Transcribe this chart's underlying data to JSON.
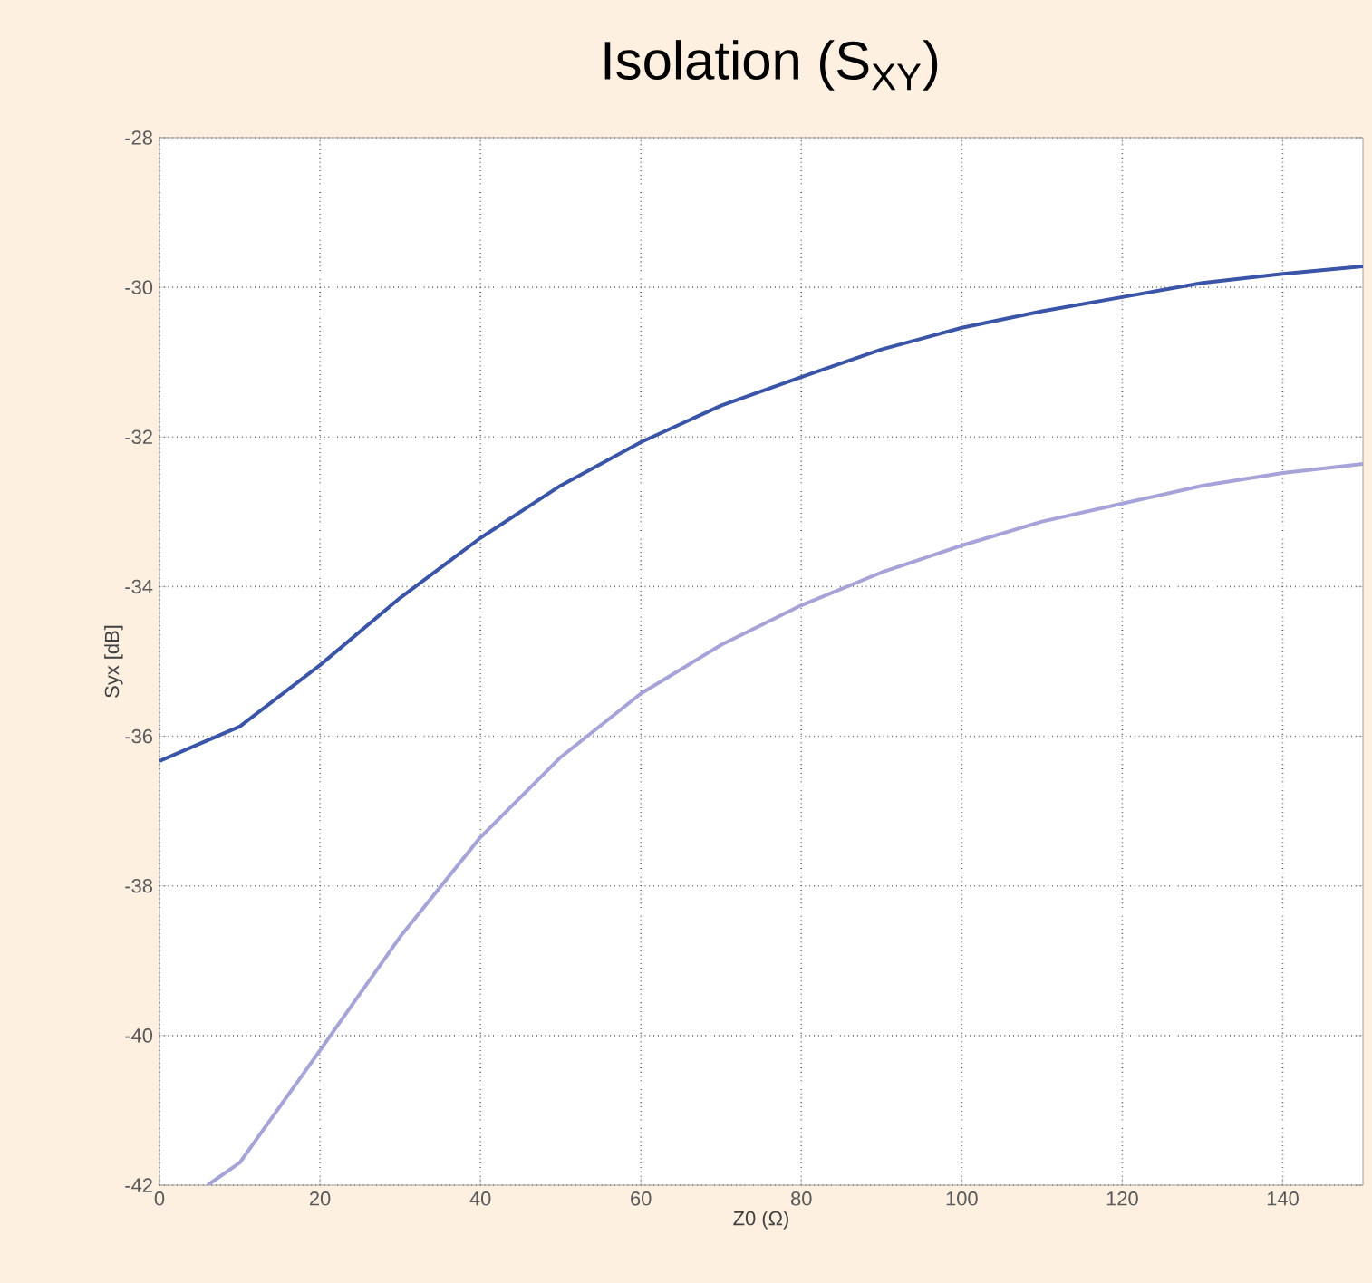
{
  "chart_data": {
    "type": "line",
    "title": "Isolation (S$_{XY}$)",
    "xlabel": "Z0 (Ω)",
    "ylabel": "Syx [dB]",
    "xlim": [
      0,
      150
    ],
    "xticks": [
      0,
      20,
      40,
      60,
      80,
      100,
      120,
      140
    ],
    "ylim": [
      -42,
      -28
    ],
    "yticks": [
      -42,
      -40,
      -38,
      -36,
      -34,
      -32,
      -30,
      -28
    ],
    "grid": true,
    "marker": "none",
    "line_style": "solid",
    "series": [
      {
        "color": "#3a55a8",
        "x": [
          0,
          10,
          20,
          30,
          40,
          50,
          60,
          70,
          80,
          90,
          100,
          110,
          120,
          130,
          140,
          150
        ],
        "values": [
          -36.33,
          -35.87,
          -35.05,
          -34.15,
          -33.35,
          -32.65,
          -32.07,
          -31.58,
          -31.2,
          -30.83,
          -30.54,
          -30.32,
          -30.13,
          -29.94,
          -29.82,
          -29.72
        ]
      },
      {
        "color": "#a5a3d8",
        "x": [
          6,
          10,
          20,
          30,
          40,
          50,
          60,
          70,
          80,
          90,
          100,
          110,
          120,
          130,
          140,
          150
        ],
        "values": [
          -42.0,
          -41.7,
          -40.2,
          -38.68,
          -37.35,
          -36.28,
          -35.43,
          -34.78,
          -34.25,
          -33.81,
          -33.45,
          -33.13,
          -32.89,
          -32.65,
          -32.48,
          -32.36
        ]
      }
    ]
  }
}
